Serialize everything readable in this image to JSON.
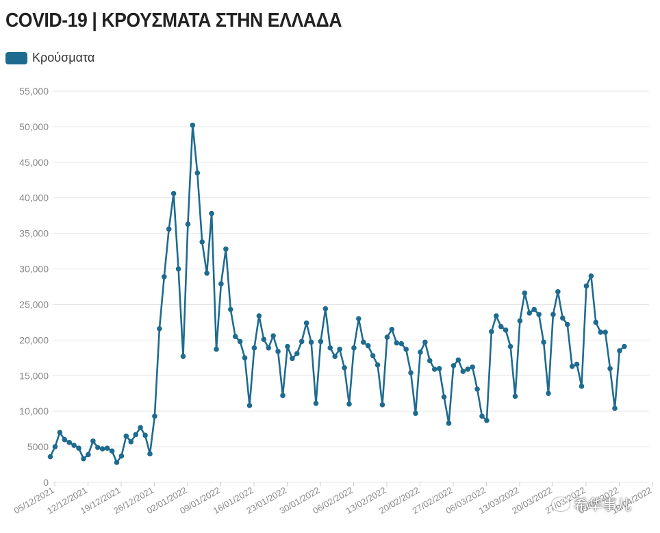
{
  "header": {
    "title": "COVID-19 | ΚΡΟΥΣΜΑΤΑ ΣΤΗΝ ΕΛΛΑΔΑ"
  },
  "watermark": {
    "text": "希华事儿",
    "icon": "wechat-icon"
  },
  "colors": {
    "series": "#1e6b8f",
    "grid": "#e6e6e6",
    "tick": "#888888"
  },
  "chart_data": {
    "type": "line",
    "title": "COVID-19 | ΚΡΟΥΣΜΑΤΑ ΣΤΗΝ ΕΛΛΑΔΑ",
    "legend": {
      "position": "top-left",
      "entries": [
        "Κρούσματα"
      ]
    },
    "grid": true,
    "ylim": [
      0,
      55000
    ],
    "yticks": [
      "0",
      "5000",
      "10,000",
      "15,000",
      "20,000",
      "25,000",
      "30,000",
      "35,000",
      "40,000",
      "45,000",
      "50,000",
      "55,000"
    ],
    "xticks": [
      "05/12/2021",
      "12/12/2021",
      "19/12/2021",
      "26/12/2021",
      "02/01/2022",
      "09/01/2022",
      "16/01/2022",
      "23/01/2022",
      "30/01/2022",
      "06/02/2022",
      "13/02/2022",
      "20/02/2022",
      "27/02/2022",
      "06/03/2022",
      "13/03/2022",
      "20/03/2022",
      "27/03/2022",
      "03/04/2022",
      "10/04/2022"
    ],
    "x_start": "05/12/2021",
    "x_end": "10/04/2022",
    "series": [
      {
        "name": "Κρούσματα",
        "color": "#1e6b8f",
        "values": [
          3600,
          5000,
          7000,
          6000,
          5600,
          5200,
          4800,
          3300,
          3900,
          5800,
          4900,
          4700,
          4800,
          4400,
          2800,
          3700,
          6500,
          5700,
          6700,
          7700,
          6600,
          4000,
          9300,
          21600,
          28900,
          35600,
          40600,
          30000,
          17700,
          36300,
          50200,
          43500,
          33800,
          29400,
          37800,
          18700,
          27900,
          32800,
          24300,
          20500,
          19800,
          17500,
          10800,
          18900,
          23400,
          20100,
          18900,
          20600,
          18400,
          12200,
          19100,
          17400,
          18100,
          19800,
          22400,
          19700,
          11100,
          19800,
          24400,
          18900,
          17700,
          18700,
          16100,
          11000,
          18900,
          23000,
          19700,
          19200,
          17800,
          16500,
          10900,
          20400,
          21500,
          19600,
          19500,
          18700,
          15400,
          9700,
          18300,
          19700,
          17100,
          15900,
          16000,
          12000,
          8300,
          16400,
          17200,
          15600,
          15900,
          16200,
          13100,
          9300,
          8700,
          21200,
          23400,
          21900,
          21400,
          19100,
          12100,
          22700,
          26600,
          23800,
          24300,
          23600,
          19700,
          12500,
          23600,
          26800,
          23100,
          22200,
          16300,
          16600,
          13500,
          27600,
          29000,
          22500,
          21100,
          21100,
          16000,
          10400,
          18500,
          19100
        ]
      }
    ]
  },
  "series_values_note": ""
}
